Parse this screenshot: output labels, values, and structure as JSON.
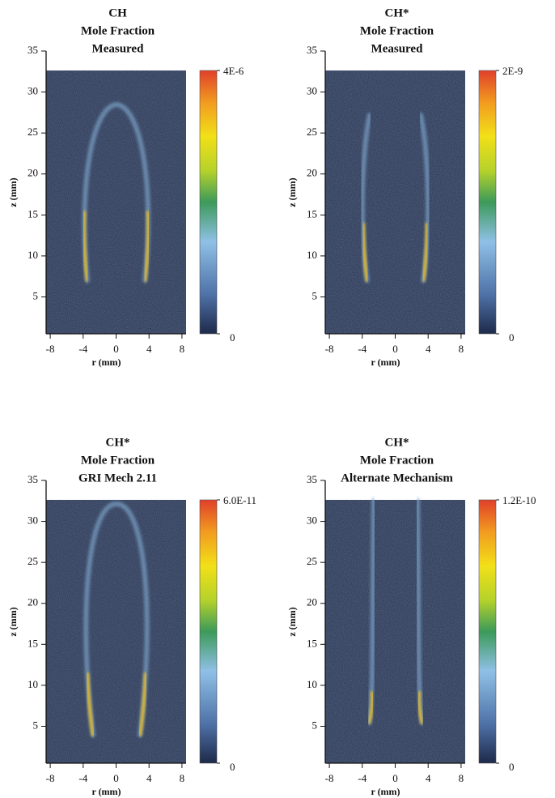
{
  "chart_data": [
    {
      "type": "heatmap",
      "title_lines": [
        "CH",
        "Mole Fraction",
        "Measured"
      ],
      "xlabel": "r (mm)",
      "ylabel": "z (mm)",
      "xlim": [
        -8.5,
        8.5
      ],
      "xticks": [
        -8,
        -4,
        0,
        4,
        8
      ],
      "ylim": [
        0.5,
        35
      ],
      "yticks": [
        5,
        10,
        15,
        20,
        25,
        30,
        35
      ],
      "clim": [
        0,
        4e-06
      ],
      "cticks": [
        0,
        {
          "value": 4e-06,
          "label": "4E-6"
        }
      ]
    },
    {
      "type": "heatmap",
      "title_lines": [
        "CH*",
        "Mole Fraction",
        "Measured"
      ],
      "xlabel": "r (mm)",
      "ylabel": "z (mm)",
      "xlim": [
        -8.5,
        8.5
      ],
      "xticks": [
        -8,
        -4,
        0,
        4,
        8
      ],
      "ylim": [
        0.5,
        35
      ],
      "yticks": [
        5,
        10,
        15,
        20,
        25,
        30,
        35
      ],
      "clim": [
        0,
        2e-09
      ],
      "cticks": [
        0,
        {
          "value": 2e-09,
          "label": "2E-9"
        }
      ]
    },
    {
      "type": "heatmap",
      "title_lines": [
        "CH*",
        "Mole Fraction",
        "GRI Mech 2.11"
      ],
      "xlabel": "r (mm)",
      "ylabel": "z (mm)",
      "xlim": [
        -8.5,
        8.5
      ],
      "xticks": [
        -8,
        -4,
        0,
        4,
        8
      ],
      "ylim": [
        0.5,
        35
      ],
      "yticks": [
        5,
        10,
        15,
        20,
        25,
        30,
        35
      ],
      "clim": [
        0,
        6e-11
      ],
      "cticks": [
        0,
        {
          "value": 6e-11,
          "label": "6.0E-11"
        }
      ]
    },
    {
      "type": "heatmap",
      "title_lines": [
        "CH*",
        "Mole Fraction",
        "Alternate Mechanism"
      ],
      "xlabel": "r (mm)",
      "ylabel": "z (mm)",
      "xlim": [
        -8.5,
        8.5
      ],
      "xticks": [
        -8,
        -4,
        0,
        4,
        8
      ],
      "ylim": [
        0.5,
        35
      ],
      "yticks": [
        5,
        10,
        15,
        20,
        25,
        30,
        35
      ],
      "clim": [
        0,
        1.2e-10
      ],
      "cticks": [
        0,
        {
          "value": 1.2e-10,
          "label": "1.2E-10"
        }
      ]
    }
  ]
}
